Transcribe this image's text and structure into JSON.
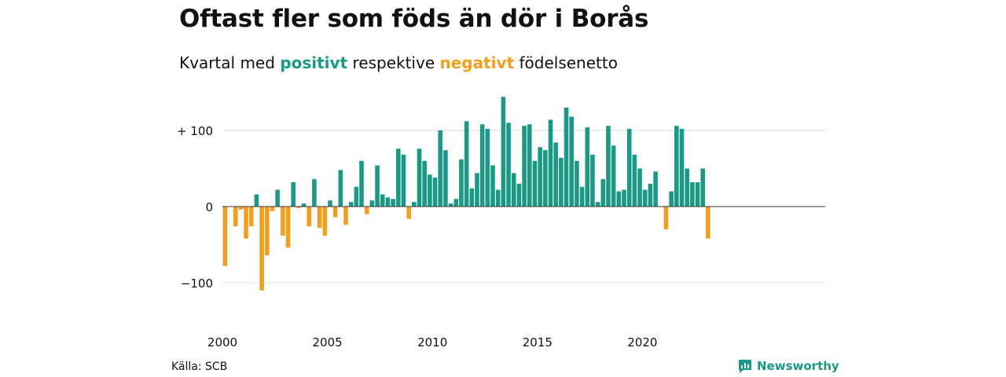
{
  "title": "Oftast fler som föds än dör i Borås",
  "subtitle": {
    "prefix": "Kvartal med",
    "positive": "positivt",
    "middle": "respektive",
    "negative": "negativt",
    "suffix": "födelsenetto"
  },
  "source": "Källa: SCB",
  "brand": {
    "name": "Newsworthy",
    "icon": "newsworthy-logo-icon"
  },
  "colors": {
    "positive": "#1a9985",
    "negative": "#f29f1e",
    "grid": "#dddddd",
    "axis": "#333333"
  },
  "chart_data": {
    "type": "bar",
    "title": "Oftast fler som föds än dör i Borås",
    "subtitle": "Kvartal med positivt respektive negativt födelsenetto",
    "xlabel": "",
    "ylabel": "",
    "ylim": [
      -130,
      130
    ],
    "yticks": [
      -100,
      0,
      100
    ],
    "ytick_labels": [
      "−100",
      "0",
      "+ 100"
    ],
    "xticks": [
      2000,
      2005,
      2010,
      2015,
      2020
    ],
    "grid": true,
    "start": "2000 Q1",
    "period": "quarter",
    "values": [
      -78,
      0,
      -26,
      -4,
      -42,
      -26,
      16,
      -110,
      -64,
      -6,
      22,
      -38,
      -54,
      32,
      -2,
      4,
      -26,
      36,
      -28,
      -38,
      8,
      -14,
      48,
      -24,
      6,
      26,
      60,
      -10,
      8,
      54,
      16,
      12,
      10,
      76,
      68,
      -16,
      6,
      76,
      60,
      42,
      38,
      100,
      74,
      4,
      10,
      62,
      112,
      24,
      44,
      108,
      102,
      54,
      22,
      144,
      110,
      44,
      30,
      106,
      108,
      60,
      78,
      74,
      114,
      84,
      64,
      130,
      118,
      60,
      26,
      104,
      68,
      6,
      36,
      106,
      80,
      20,
      22,
      102,
      68,
      50,
      22,
      30,
      46,
      0,
      -30,
      20,
      106,
      102,
      50,
      32,
      32,
      50,
      -42
    ]
  }
}
